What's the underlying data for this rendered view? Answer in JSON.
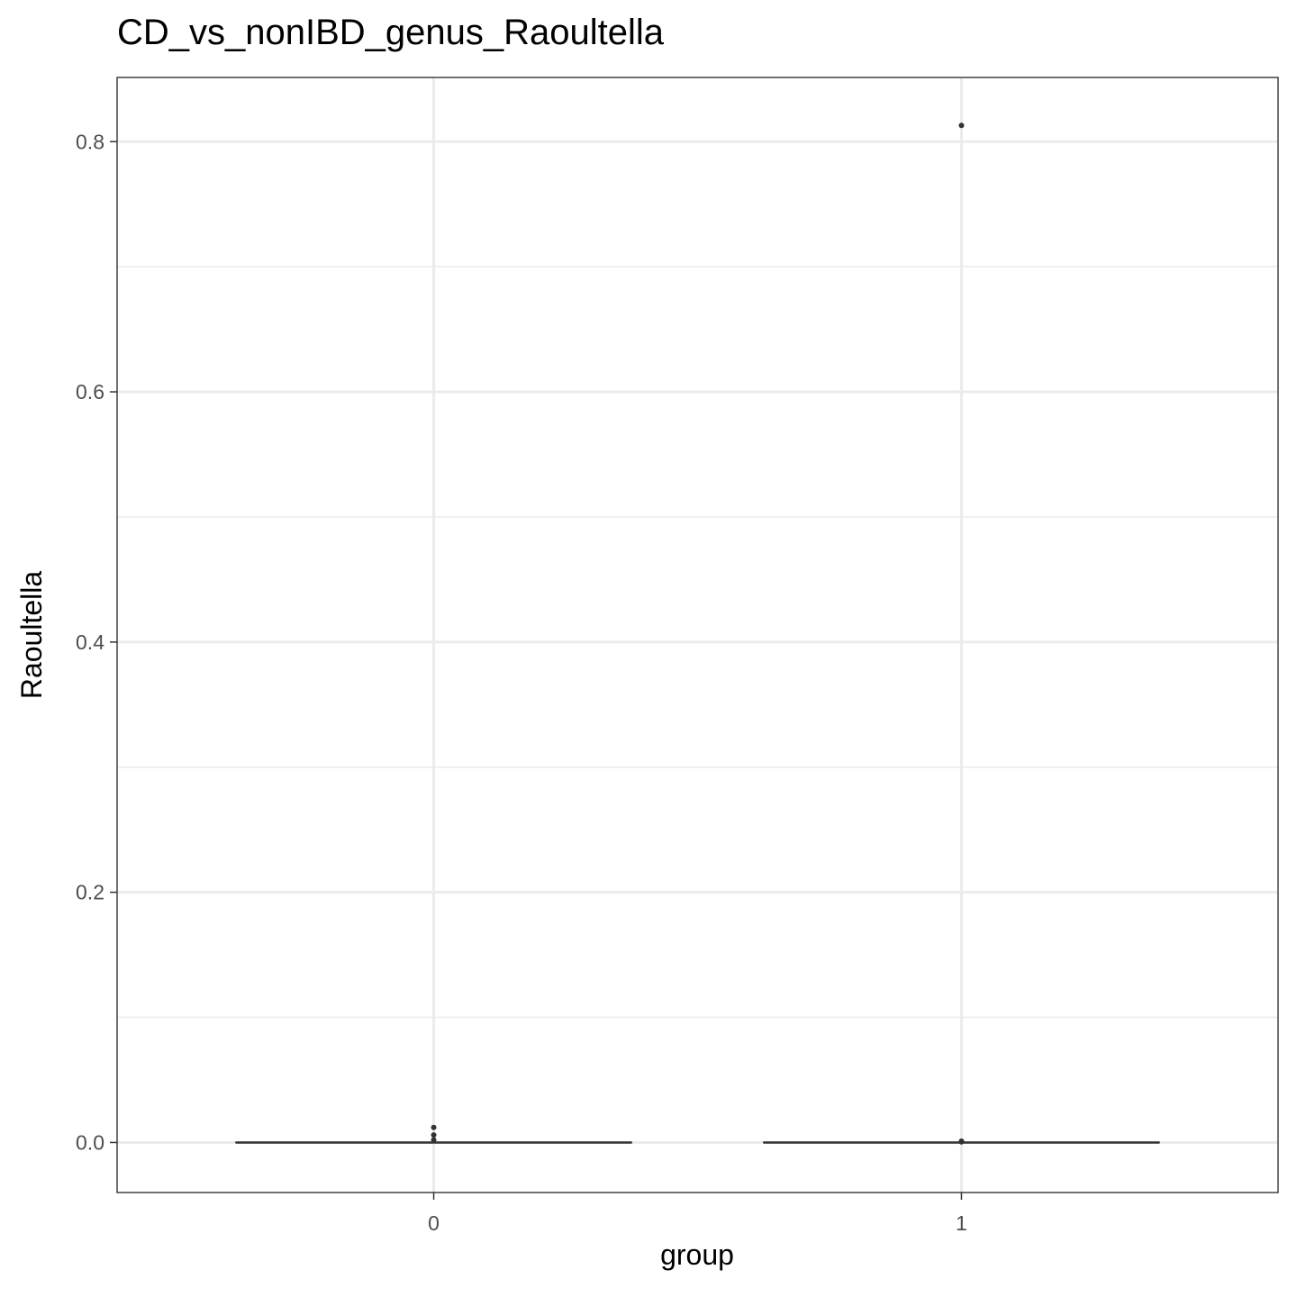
{
  "chart_data": {
    "type": "box",
    "title": "CD_vs_nonIBD_genus_Raoultella",
    "xlabel": "group",
    "ylabel": "Raoultella",
    "categories": [
      "0",
      "1"
    ],
    "ylim": [
      -0.04,
      0.8513
    ],
    "yticks": [
      0.0,
      0.2,
      0.4,
      0.6,
      0.8
    ],
    "ytick_labels": [
      "0.0",
      "0.2",
      "0.4",
      "0.6",
      "0.8"
    ],
    "minor_yticks": [
      0.1,
      0.3,
      0.5,
      0.7
    ],
    "grid": true,
    "colors": {
      "box": "#333333",
      "grid": "#ebebeb",
      "panel_border": "#333333",
      "tick_text": "#4d4d4d"
    },
    "boxes": [
      {
        "group": "0",
        "min": 0.0,
        "q1": 0.0,
        "median": 0.0,
        "q3": 0.0,
        "max": 0.0,
        "outliers": [
          0.012,
          0.006,
          0.002
        ]
      },
      {
        "group": "1",
        "min": 0.0,
        "q1": 0.0,
        "median": 0.0,
        "q3": 0.0,
        "max": 0.0,
        "outliers": [
          0.813,
          0.001,
          0.0005
        ]
      }
    ]
  }
}
